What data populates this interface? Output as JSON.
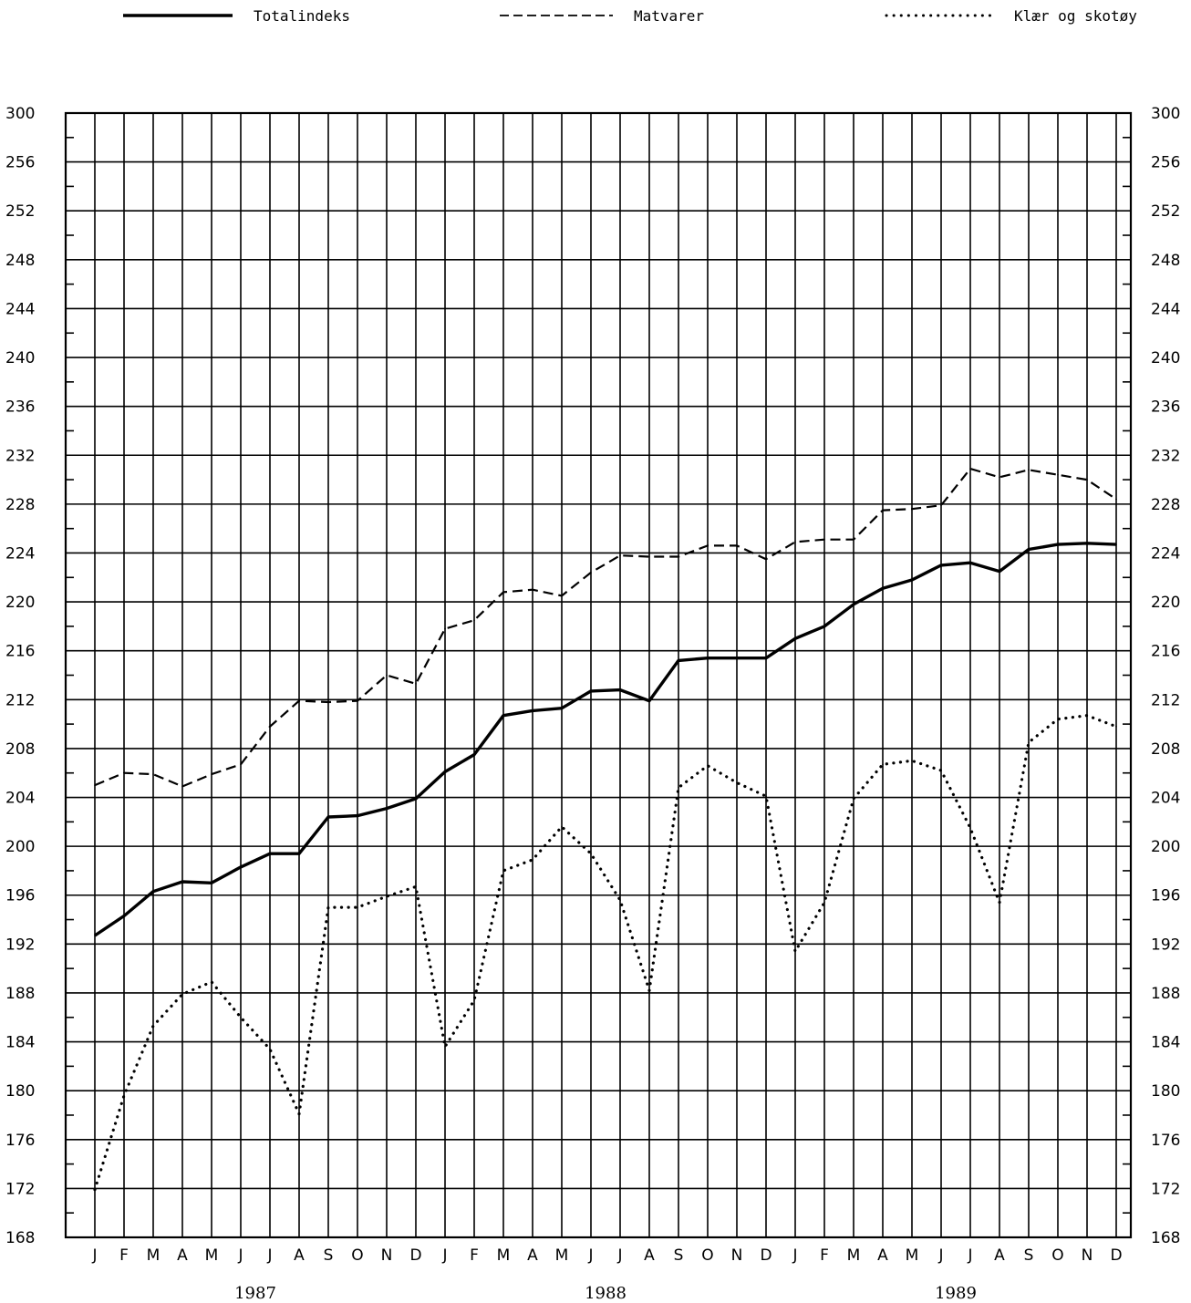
{
  "chart_data": {
    "type": "line",
    "title": "",
    "xlabel": "",
    "ylabel": "",
    "ylim": [
      168,
      300
    ],
    "y_tick_labels": [
      "300",
      "256",
      "252",
      "248",
      "244",
      "240",
      "236",
      "232",
      "228",
      "224",
      "220",
      "216",
      "212",
      "208",
      "204",
      "200",
      "196",
      "192",
      "188",
      "184",
      "180",
      "176",
      "172",
      "168"
    ],
    "x": [
      "J",
      "F",
      "M",
      "A",
      "M",
      "J",
      "J",
      "A",
      "S",
      "O",
      "N",
      "D",
      "J",
      "F",
      "M",
      "A",
      "M",
      "J",
      "J",
      "A",
      "S",
      "O",
      "N",
      "D",
      "J",
      "F",
      "M",
      "A",
      "M",
      "J",
      "J",
      "A",
      "S",
      "O",
      "N",
      "D"
    ],
    "years": [
      "1987",
      "1988",
      "1989"
    ],
    "grid": true,
    "legend_position": "top",
    "series": [
      {
        "name": "Totalindeks",
        "style": "solid",
        "values": [
          192.7,
          194.3,
          196.3,
          197.1,
          197.0,
          198.3,
          199.4,
          199.4,
          202.4,
          202.5,
          203.1,
          203.9,
          206.1,
          207.5,
          210.7,
          211.1,
          211.3,
          212.7,
          212.8,
          211.9,
          215.2,
          215.4,
          215.4,
          215.4,
          217.0,
          218.0,
          219.8,
          221.1,
          221.8,
          223.0,
          223.2,
          222.5,
          224.3,
          224.7,
          224.8,
          224.7
        ]
      },
      {
        "name": "Matvarer",
        "style": "dashed",
        "values": [
          205.0,
          206.0,
          205.9,
          204.9,
          205.9,
          206.7,
          209.8,
          211.9,
          211.8,
          211.9,
          214.0,
          213.3,
          217.8,
          218.5,
          220.8,
          221.0,
          220.5,
          222.4,
          223.8,
          223.7,
          223.7,
          224.6,
          224.6,
          223.5,
          224.9,
          225.1,
          225.1,
          227.5,
          227.6,
          227.9,
          230.9,
          230.2,
          230.8,
          230.4,
          230.0,
          228.4
        ]
      },
      {
        "name": "Klær og skotøy",
        "style": "dotted",
        "values": [
          171.9,
          179.6,
          185.3,
          187.9,
          188.9,
          186.0,
          183.4,
          178.1,
          195.0,
          195.0,
          195.9,
          196.7,
          183.6,
          187.4,
          198.0,
          198.9,
          201.6,
          199.4,
          195.6,
          188.2,
          204.8,
          206.6,
          205.2,
          204.1,
          191.4,
          195.4,
          203.9,
          206.7,
          207.0,
          206.2,
          201.5,
          195.4,
          208.5,
          210.4,
          210.7,
          209.8
        ]
      }
    ]
  }
}
